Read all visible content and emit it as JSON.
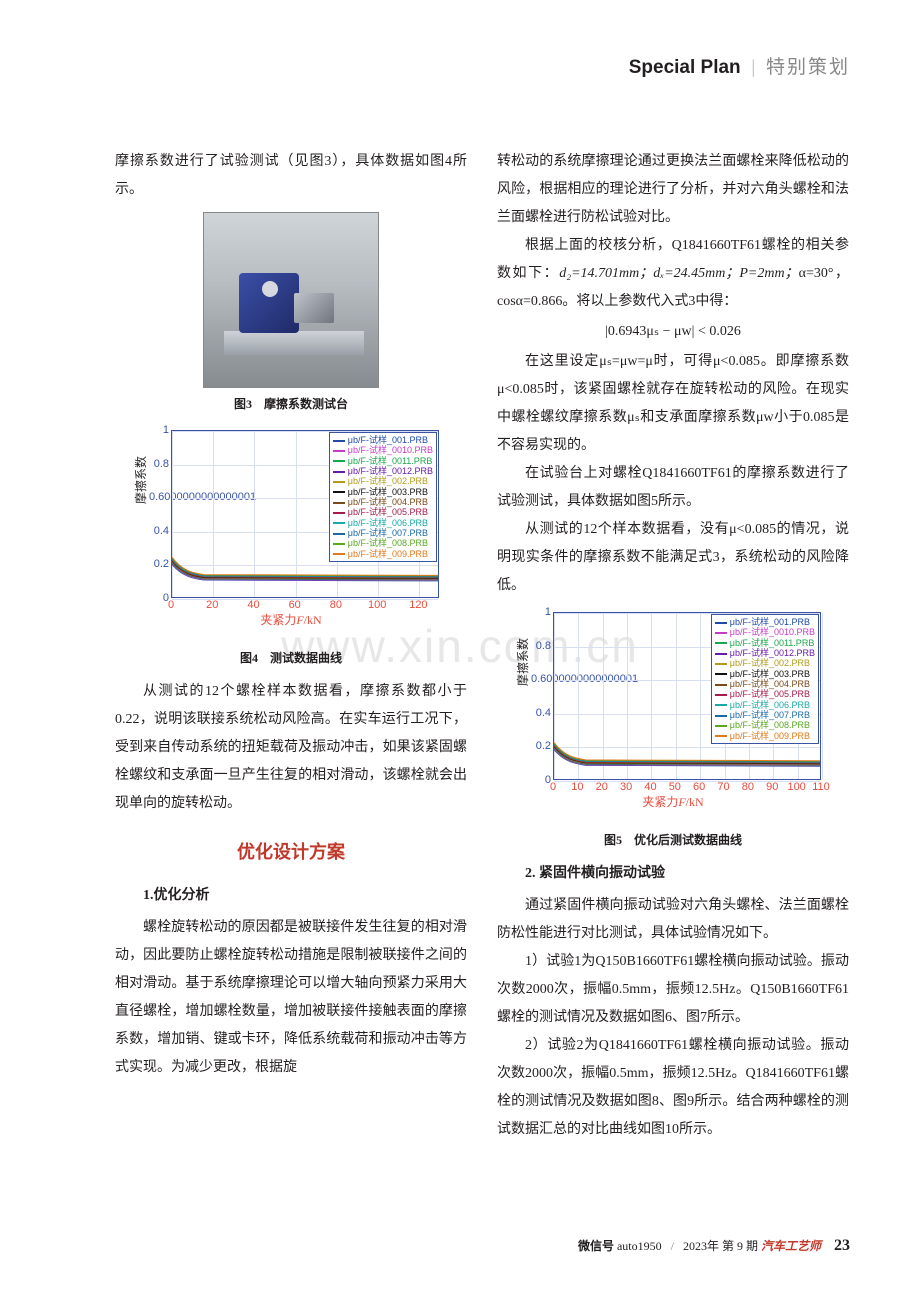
{
  "header": {
    "en": "Special Plan",
    "cn": "特别策划"
  },
  "watermark": "www.xin.com.cn",
  "left": {
    "p1": "摩擦系数进行了试验测试（见图3），具体数据如图4所示。",
    "fig3_caption": "图3　摩擦系数测试台",
    "chart4": {
      "caption": "图4　测试数据曲线",
      "ylabel": "摩擦系数",
      "xlabel_prefix": "夹紧力",
      "xlabel_var": "F",
      "xlabel_unit": "/kN",
      "ylim": [
        0,
        1
      ],
      "ytick_step": 0.2,
      "xlim": [
        0,
        130
      ],
      "xticks": [
        0,
        20,
        40,
        60,
        80,
        100,
        120
      ],
      "axis_color": "#3853a3",
      "grid_color": "#d9def0",
      "xlabel_color": "#e74c3c",
      "series": [
        {
          "label": "μb/F-试样_001.PRB",
          "color": "#1f4aa8"
        },
        {
          "label": "μb/F-试样_0010.PRB",
          "color": "#c63cc6"
        },
        {
          "label": "μb/F-试样_0011.PRB",
          "color": "#1aa84a"
        },
        {
          "label": "μb/F-试样_0012.PRB",
          "color": "#6a1aa8"
        },
        {
          "label": "μb/F-试样_002.PRB",
          "color": "#b39b1a"
        },
        {
          "label": "μb/F-试样_003.PRB",
          "color": "#111111"
        },
        {
          "label": "μb/F-试样_004.PRB",
          "color": "#7a4a1a"
        },
        {
          "label": "μb/F-试样_005.PRB",
          "color": "#a81a4a"
        },
        {
          "label": "μb/F-试样_006.PRB",
          "color": "#1aa8a8"
        },
        {
          "label": "μb/F-试样_007.PRB",
          "color": "#1a6aa8"
        },
        {
          "label": "μb/F-试样_008.PRB",
          "color": "#5aa820"
        },
        {
          "label": "μb/F-试样_009.PRB",
          "color": "#e07a1a"
        }
      ],
      "curve_start_y": 0.22,
      "curve_settle_y": 0.12
    },
    "p2": "从测试的12个螺栓样本数据看，摩擦系数都小于0.22，说明该联接系统松动风险高。在实车运行工况下，受到来自传动系统的扭矩载荷及振动冲击，如果该紧固螺栓螺纹和支承面一旦产生往复的相对滑动，该螺栓就会出现单向的旋转松动。",
    "section_title": "优化设计方案",
    "sub1": "1.优化分析",
    "p3": "螺栓旋转松动的原因都是被联接件发生往复的相对滑动，因此要防止螺栓旋转松动措施是限制被联接件之间的相对滑动。基于系统摩擦理论可以增大轴向预紧力采用大直径螺栓，增加螺栓数量，增加被联接件接触表面的摩擦系数，增加销、键或卡环，降低系统载荷和振动冲击等方式实现。为减少更改，根据旋"
  },
  "right": {
    "p1": "转松动的系统摩擦理论通过更换法兰面螺栓来降低松动的风险，根据相应的理论进行了分析，并对六角头螺栓和法兰面螺栓进行防松试验对比。",
    "p2_a": "根据上面的校核分析，Q1841660TF61螺栓的相关参数如下：",
    "p2_b": "d₂=14.701mm；dₓ=24.45mm；P=2mm；",
    "p2_c": "α=30°，cosα=0.866。将以上参数代入式3中得：",
    "formula": "|0.6943μₛ − μᴡ| < 0.026",
    "p3": "在这里设定μₛ=μᴡ=μ时，可得μ<0.085。即摩擦系数μ<0.085时，该紧固螺栓就存在旋转松动的风险。在现实中螺栓螺纹摩擦系数μₛ和支承面摩擦系数μᴡ小于0.085是不容易实现的。",
    "p4": "在试验台上对螺栓Q1841660TF61的摩擦系数进行了试验测试，具体数据如图5所示。",
    "p5": "从测试的12个样本数据看，没有μ<0.085的情况，说明现实条件的摩擦系数不能满足式3，系统松动的风险降低。",
    "chart5": {
      "caption": "图5　优化后测试数据曲线",
      "ylabel": "摩擦系数",
      "xlabel_prefix": "夹紧力",
      "xlabel_var": "F",
      "xlabel_unit": "/kN",
      "ylim": [
        0,
        1
      ],
      "ytick_step": 0.2,
      "xlim": [
        0,
        110
      ],
      "xticks": [
        0,
        10,
        20,
        30,
        40,
        50,
        60,
        70,
        80,
        90,
        100,
        110
      ],
      "axis_color": "#3853a3",
      "grid_color": "#d9def0",
      "xlabel_color": "#e74c3c",
      "series": [
        {
          "label": "μb/F-试样_001.PRB",
          "color": "#1f4aa8"
        },
        {
          "label": "μb/F-试样_0010.PRB",
          "color": "#c63cc6"
        },
        {
          "label": "μb/F-试样_0011.PRB",
          "color": "#1aa84a"
        },
        {
          "label": "μb/F-试样_0012.PRB",
          "color": "#6a1aa8"
        },
        {
          "label": "μb/F-试样_002.PRB",
          "color": "#b39b1a"
        },
        {
          "label": "μb/F-试样_003.PRB",
          "color": "#111111"
        },
        {
          "label": "μb/F-试样_004.PRB",
          "color": "#7a4a1a"
        },
        {
          "label": "μb/F-试样_005.PRB",
          "color": "#a81a4a"
        },
        {
          "label": "μb/F-试样_006.PRB",
          "color": "#1aa8a8"
        },
        {
          "label": "μb/F-试样_007.PRB",
          "color": "#1a6aa8"
        },
        {
          "label": "μb/F-试样_008.PRB",
          "color": "#5aa820"
        },
        {
          "label": "μb/F-试样_009.PRB",
          "color": "#e07a1a"
        }
      ],
      "curve_start_y": 0.2,
      "curve_settle_y": 0.1
    },
    "sub2": "2. 紧固件横向振动试验",
    "p6": "通过紧固件横向振动试验对六角头螺栓、法兰面螺栓防松性能进行对比测试，具体试验情况如下。",
    "p7": "1）试验1为Q150B1660TF61螺栓横向振动试验。振动次数2000次，振幅0.5mm，振频12.5Hz。Q150B1660TF61螺栓的测试情况及数据如图6、图7所示。",
    "p8": "2）试验2为Q1841660TF61螺栓横向振动试验。振动次数2000次，振幅0.5mm，振频12.5Hz。Q1841660TF61螺栓的测试情况及数据如图8、图9所示。结合两种螺栓的测试数据汇总的对比曲线如图10所示。"
  },
  "footer": {
    "wechat_label": "微信号",
    "wechat": "auto1950",
    "issue": "2023年 第 9 期",
    "mag": "汽车工艺师",
    "page": "23"
  }
}
